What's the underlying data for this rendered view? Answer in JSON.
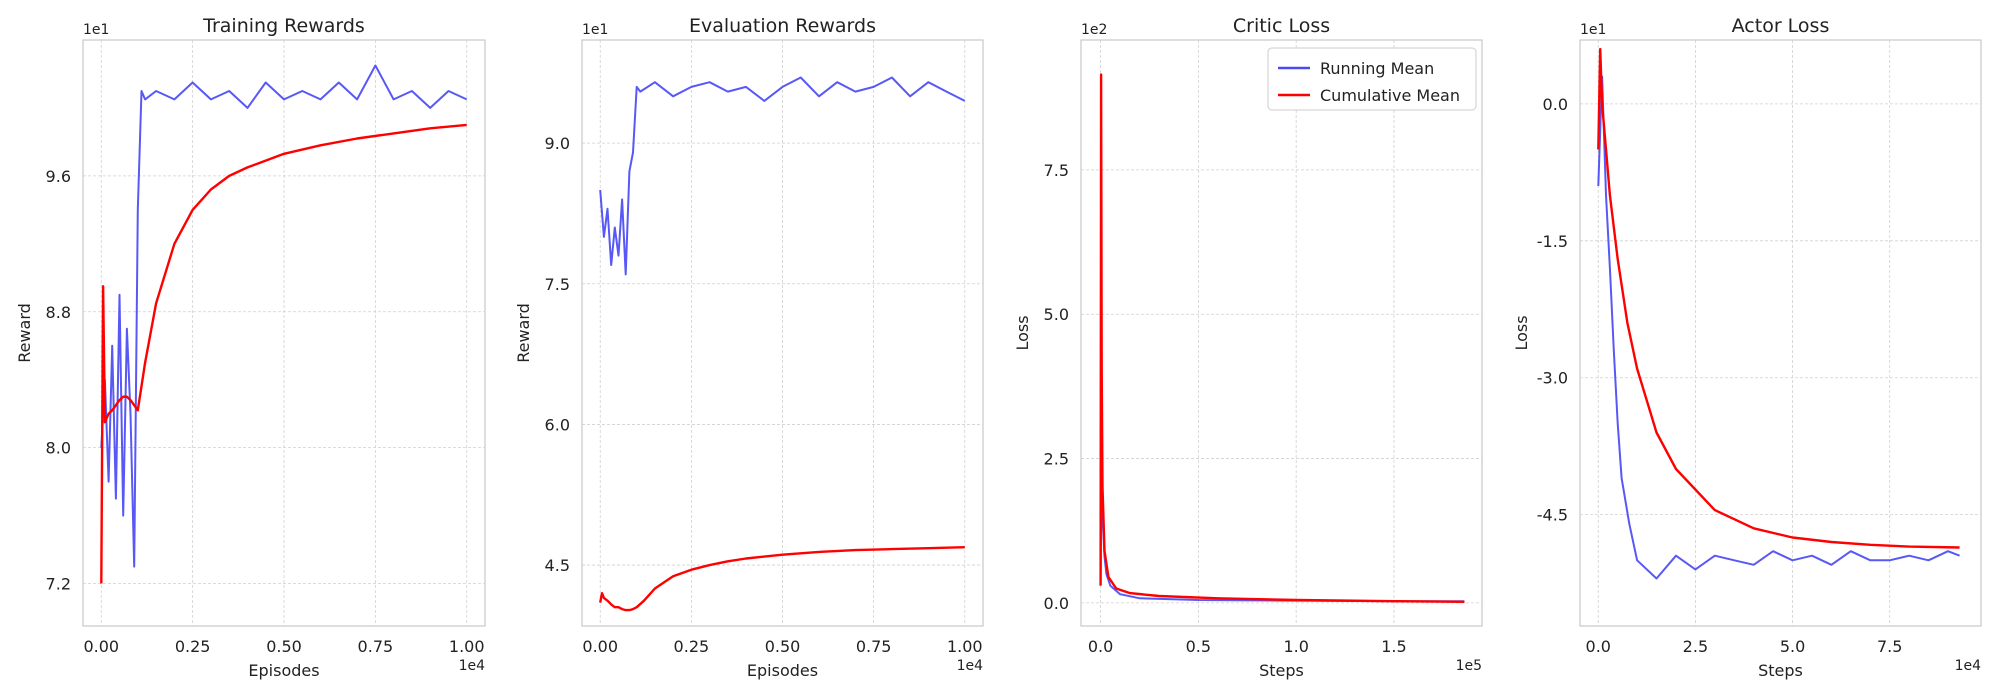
{
  "colors": {
    "running": "#4a4af5",
    "cumulative": "#ff0000",
    "grid": "#d0d0d0",
    "frame": "#c8c8c8"
  },
  "legend": {
    "items": [
      "Running Mean",
      "Cumulative Mean"
    ],
    "placement": "top-right",
    "panel": 2
  },
  "chart_data": [
    {
      "type": "line",
      "title": "Training Rewards",
      "xlabel": "Episodes",
      "ylabel": "Reward",
      "x_multiplier": "1e4",
      "y_multiplier": "1e1",
      "xlim": [
        -0.05,
        1.05
      ],
      "ylim": [
        6.95,
        10.4
      ],
      "xticks": [
        "0.00",
        "0.25",
        "0.50",
        "0.75",
        "1.00"
      ],
      "yticks": [
        "7.2",
        "8.0",
        "8.8",
        "9.6"
      ],
      "grid": true,
      "series": [
        {
          "name": "Running Mean",
          "x": [
            0,
            0.01,
            0.02,
            0.03,
            0.04,
            0.05,
            0.06,
            0.07,
            0.08,
            0.09,
            0.1,
            0.11,
            0.12,
            0.15,
            0.2,
            0.25,
            0.3,
            0.35,
            0.4,
            0.45,
            0.5,
            0.55,
            0.6,
            0.65,
            0.7,
            0.75,
            0.8,
            0.85,
            0.9,
            0.95,
            1.0
          ],
          "values": [
            8.0,
            8.4,
            7.8,
            8.6,
            7.7,
            8.9,
            7.6,
            8.7,
            8.2,
            7.3,
            9.4,
            10.1,
            10.05,
            10.1,
            10.05,
            10.15,
            10.05,
            10.1,
            10.0,
            10.15,
            10.05,
            10.1,
            10.05,
            10.15,
            10.05,
            10.25,
            10.05,
            10.1,
            10.0,
            10.1,
            10.05
          ]
        },
        {
          "name": "Cumulative Mean",
          "x": [
            0,
            0.005,
            0.01,
            0.02,
            0.03,
            0.04,
            0.05,
            0.06,
            0.07,
            0.08,
            0.09,
            0.1,
            0.12,
            0.15,
            0.2,
            0.25,
            0.3,
            0.35,
            0.4,
            0.5,
            0.6,
            0.7,
            0.8,
            0.9,
            1.0
          ],
          "values": [
            7.2,
            8.95,
            8.15,
            8.2,
            8.22,
            8.25,
            8.28,
            8.3,
            8.3,
            8.28,
            8.25,
            8.22,
            8.5,
            8.85,
            9.2,
            9.4,
            9.52,
            9.6,
            9.65,
            9.73,
            9.78,
            9.82,
            9.85,
            9.88,
            9.9
          ]
        }
      ]
    },
    {
      "type": "line",
      "title": "Evaluation Rewards",
      "xlabel": "Episodes",
      "ylabel": "Reward",
      "x_multiplier": "1e4",
      "y_multiplier": "1e1",
      "xlim": [
        -0.05,
        1.05
      ],
      "ylim": [
        3.85,
        10.1
      ],
      "xticks": [
        "0.00",
        "0.25",
        "0.50",
        "0.75",
        "1.00"
      ],
      "yticks": [
        "4.5",
        "6.0",
        "7.5",
        "9.0"
      ],
      "grid": true,
      "series": [
        {
          "name": "Running Mean",
          "x": [
            0,
            0.01,
            0.02,
            0.03,
            0.04,
            0.05,
            0.06,
            0.07,
            0.08,
            0.09,
            0.1,
            0.11,
            0.15,
            0.2,
            0.25,
            0.3,
            0.35,
            0.4,
            0.45,
            0.5,
            0.55,
            0.6,
            0.65,
            0.7,
            0.75,
            0.8,
            0.85,
            0.9,
            0.95,
            1.0
          ],
          "values": [
            8.5,
            8.0,
            8.3,
            7.7,
            8.1,
            7.8,
            8.4,
            7.6,
            8.7,
            8.9,
            9.6,
            9.55,
            9.65,
            9.5,
            9.6,
            9.65,
            9.55,
            9.6,
            9.45,
            9.6,
            9.7,
            9.5,
            9.65,
            9.55,
            9.6,
            9.7,
            9.5,
            9.65,
            9.55,
            9.45
          ]
        },
        {
          "name": "Cumulative Mean",
          "x": [
            0,
            0.005,
            0.01,
            0.02,
            0.03,
            0.04,
            0.05,
            0.06,
            0.07,
            0.08,
            0.09,
            0.1,
            0.12,
            0.15,
            0.2,
            0.25,
            0.3,
            0.35,
            0.4,
            0.5,
            0.6,
            0.7,
            0.8,
            0.9,
            1.0
          ],
          "values": [
            4.1,
            4.2,
            4.15,
            4.12,
            4.08,
            4.05,
            4.05,
            4.03,
            4.02,
            4.02,
            4.03,
            4.05,
            4.12,
            4.25,
            4.38,
            4.45,
            4.5,
            4.54,
            4.57,
            4.61,
            4.64,
            4.66,
            4.67,
            4.68,
            4.69
          ]
        }
      ]
    },
    {
      "type": "line",
      "title": "Critic Loss",
      "xlabel": "Steps",
      "ylabel": "Loss",
      "x_multiplier": "1e5",
      "y_multiplier": "1e2",
      "xlim": [
        -0.1,
        1.95
      ],
      "ylim": [
        -0.4,
        9.75
      ],
      "xticks": [
        "0.0",
        "0.5",
        "1.0",
        "1.5"
      ],
      "yticks": [
        "0.0",
        "2.5",
        "5.0",
        "7.5"
      ],
      "grid": true,
      "series": [
        {
          "name": "Running Mean",
          "x": [
            0,
            0.005,
            0.01,
            0.02,
            0.03,
            0.05,
            0.1,
            0.2,
            0.5,
            1.0,
            1.5,
            1.86
          ],
          "values": [
            0.5,
            2.4,
            1.5,
            0.8,
            0.5,
            0.3,
            0.15,
            0.08,
            0.05,
            0.04,
            0.03,
            0.03
          ]
        },
        {
          "name": "Cumulative Mean",
          "x": [
            0,
            0.003,
            0.006,
            0.01,
            0.02,
            0.04,
            0.08,
            0.15,
            0.3,
            0.6,
            1.0,
            1.5,
            1.86
          ],
          "values": [
            0.3,
            9.15,
            4.0,
            2.0,
            0.9,
            0.45,
            0.25,
            0.17,
            0.12,
            0.08,
            0.05,
            0.03,
            0.02
          ]
        }
      ]
    },
    {
      "type": "line",
      "title": "Actor Loss",
      "xlabel": "Steps",
      "ylabel": "Loss",
      "x_multiplier": "1e4",
      "y_multiplier": "1e1",
      "xlim": [
        -0.47,
        9.85
      ],
      "ylim": [
        -5.72,
        0.7
      ],
      "xticks": [
        "0.0",
        "2.5",
        "5.0",
        "7.5"
      ],
      "yticks": [
        "0.0",
        "-1.5",
        "-3.0",
        "-4.5"
      ],
      "grid": true,
      "series": [
        {
          "name": "Running Mean",
          "x": [
            0,
            0.1,
            0.2,
            0.3,
            0.4,
            0.5,
            0.6,
            0.8,
            1.0,
            1.5,
            2.0,
            2.5,
            3.0,
            3.5,
            4.0,
            4.5,
            5.0,
            5.5,
            6.0,
            6.5,
            7.0,
            7.5,
            8.0,
            8.5,
            9.0,
            9.3
          ],
          "values": [
            -0.9,
            0.3,
            -1.0,
            -1.8,
            -2.7,
            -3.5,
            -4.1,
            -4.6,
            -5.0,
            -5.2,
            -4.95,
            -5.1,
            -4.95,
            -5.0,
            -5.05,
            -4.9,
            -5.0,
            -4.95,
            -5.05,
            -4.9,
            -5.0,
            -5.0,
            -4.95,
            -5.0,
            -4.9,
            -4.95
          ]
        },
        {
          "name": "Cumulative Mean",
          "x": [
            0,
            0.05,
            0.1,
            0.2,
            0.3,
            0.5,
            0.75,
            1.0,
            1.5,
            2.0,
            3.0,
            4.0,
            5.0,
            6.0,
            7.0,
            8.0,
            9.3
          ],
          "values": [
            -0.5,
            0.6,
            0.0,
            -0.5,
            -1.0,
            -1.7,
            -2.4,
            -2.9,
            -3.6,
            -4.0,
            -4.45,
            -4.65,
            -4.75,
            -4.8,
            -4.83,
            -4.85,
            -4.86
          ]
        }
      ]
    }
  ]
}
